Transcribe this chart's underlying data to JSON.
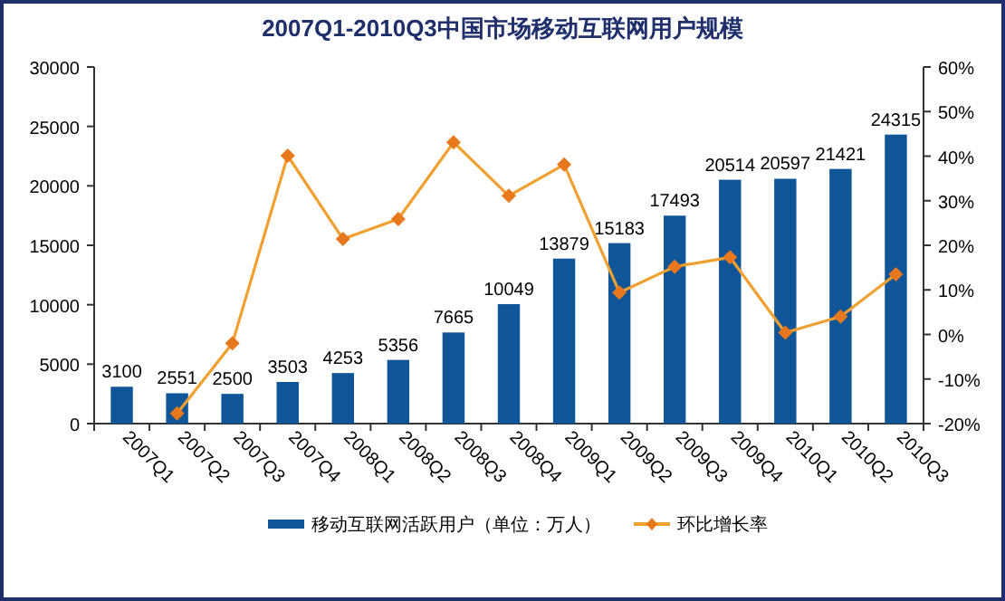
{
  "chart_data": {
    "type": "bar",
    "title": "2007Q1-2010Q3中国市场移动互联网用户规模",
    "categories": [
      "2007Q1",
      "2007Q2",
      "2007Q3",
      "2007Q4",
      "2008Q1",
      "2008Q2",
      "2008Q3",
      "2008Q4",
      "2009Q1",
      "2009Q2",
      "2009Q3",
      "2009Q4",
      "2010Q1",
      "2010Q2",
      "2010Q3"
    ],
    "series": [
      {
        "name": "移动互联网活跃用户（单位：万人）",
        "color": "#0f5597",
        "values": [
          3100,
          2551,
          2500,
          3503,
          4253,
          5356,
          7665,
          10049,
          13879,
          15183,
          17493,
          20514,
          20597,
          21421,
          24315
        ],
        "value_labels": [
          "3100",
          "2551",
          "2500",
          "3503",
          "4253",
          "5356",
          "7665",
          "10049",
          "13879",
          "15183",
          "17493",
          "20514",
          "20597",
          "21421",
          "24315"
        ]
      },
      {
        "name": "环比增长率",
        "type": "line",
        "axis": "y2",
        "color": "#f0a030",
        "marker": "diamond",
        "values": [
          null,
          -17.7,
          -2.0,
          40.1,
          21.4,
          25.9,
          43.1,
          31.1,
          38.1,
          9.4,
          15.2,
          17.3,
          0.4,
          4.0,
          13.5
        ]
      }
    ],
    "ylim": [
      0,
      30000
    ],
    "yticks": [
      0,
      5000,
      10000,
      15000,
      20000,
      25000,
      30000
    ],
    "y2lim": [
      -20,
      60
    ],
    "y2ticks": [
      {
        "value": -20,
        "label": "-20%"
      },
      {
        "value": -10,
        "label": "-10%"
      },
      {
        "value": 0,
        "label": "0%"
      },
      {
        "value": 10,
        "label": "10%"
      },
      {
        "value": 20,
        "label": "20%"
      },
      {
        "value": 30,
        "label": "30%"
      },
      {
        "value": 40,
        "label": "40%"
      },
      {
        "value": 50,
        "label": "50%"
      },
      {
        "value": 60,
        "label": "60%"
      }
    ],
    "grid": false,
    "legend": "bottom"
  }
}
